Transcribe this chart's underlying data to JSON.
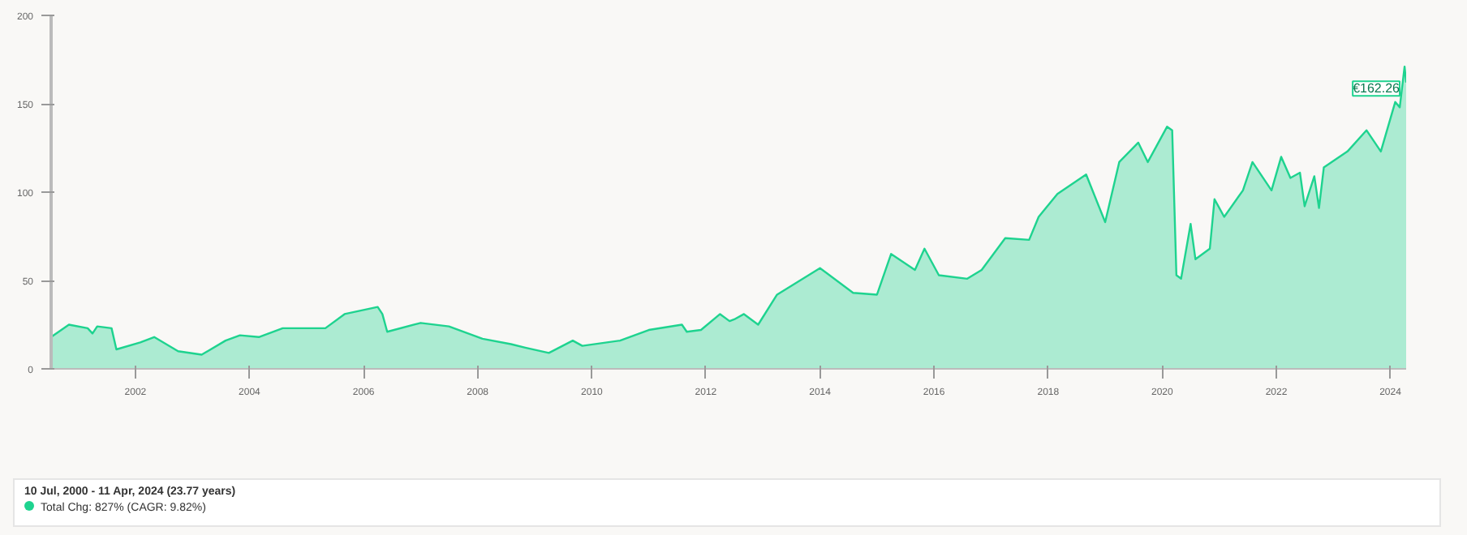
{
  "chart_data": {
    "type": "area",
    "x": [
      "2000-07-10",
      "2000-11",
      "2001-03",
      "2001-04",
      "2001-05",
      "2001-08",
      "2001-09",
      "2002-02",
      "2002-05",
      "2002-10",
      "2003-03",
      "2003-08",
      "2003-11",
      "2004-03",
      "2004-08",
      "2005-05",
      "2005-09",
      "2006-04",
      "2006-05",
      "2006-06",
      "2007-01",
      "2007-07",
      "2008-02",
      "2008-08",
      "2008-11",
      "2009-04",
      "2009-09",
      "2009-11",
      "2010-07",
      "2011-01",
      "2011-08",
      "2011-09",
      "2011-12",
      "2012-04",
      "2012-06",
      "2012-07",
      "2012-09",
      "2012-12",
      "2013-04",
      "2014-01",
      "2014-08",
      "2015-01",
      "2015-04",
      "2015-09",
      "2015-11",
      "2016-02",
      "2016-08",
      "2016-11",
      "2017-04",
      "2017-09",
      "2017-11",
      "2018-03",
      "2018-09",
      "2019-01",
      "2019-04",
      "2019-08",
      "2019-10",
      "2020-02",
      "2020-03-05",
      "2020-04",
      "2020-05",
      "2020-07",
      "2020-08",
      "2020-11",
      "2020-12",
      "2021-02",
      "2021-06",
      "2021-08",
      "2021-12",
      "2022-02",
      "2022-04",
      "2022-06",
      "2022-07",
      "2022-09",
      "2022-10",
      "2022-11",
      "2023-04",
      "2023-08",
      "2023-11",
      "2024-02",
      "2024-03",
      "2024-04-01",
      "2024-04-11"
    ],
    "series": [
      {
        "color": "#1ed38f",
        "values": [
          18,
          25,
          23,
          20,
          24,
          23,
          11,
          15,
          18,
          10,
          8,
          16,
          19,
          18,
          23,
          23,
          31,
          35,
          31,
          21,
          26,
          24,
          17,
          14,
          12,
          9,
          16,
          13,
          16,
          22,
          25,
          21,
          22,
          31,
          27,
          28,
          31,
          25,
          42,
          57,
          43,
          42,
          65,
          56,
          68,
          53,
          51,
          56,
          74,
          73,
          86,
          99,
          110,
          83,
          117,
          128,
          117,
          137,
          135,
          53,
          51,
          82,
          62,
          68,
          96,
          86,
          101,
          117,
          101,
          120,
          108,
          111,
          92,
          109,
          91,
          114,
          123,
          135,
          123,
          151,
          148,
          171,
          162
        ]
      }
    ],
    "xlim": [
      "2000-07-10",
      "2024-04-11"
    ],
    "xticks": [
      "2002",
      "2004",
      "2006",
      "2008",
      "2010",
      "2012",
      "2014",
      "2016",
      "2018",
      "2020",
      "2022",
      "2024"
    ],
    "ylim": [
      0,
      200
    ],
    "yticks": [
      0,
      50,
      100,
      150,
      200
    ],
    "grid": false,
    "annotations": [
      {
        "text": "€162.26",
        "x": "2024-04-11",
        "y": 162.26
      },
      "10 Jul, 2000 - 11 Apr, 2024 (23.77 years)",
      "Total Chg: 827% (CAGR: 9.82%)"
    ]
  }
}
